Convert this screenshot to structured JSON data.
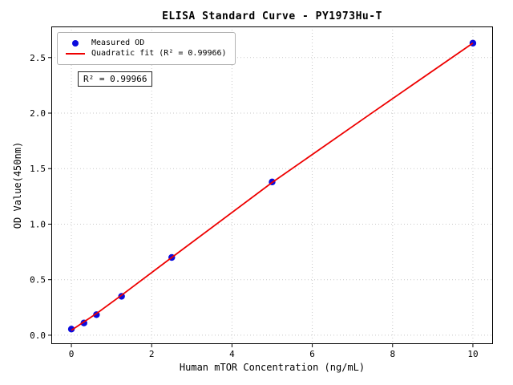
{
  "chart_data": {
    "type": "scatter",
    "title": "ELISA Standard Curve - PY1973Hu-T",
    "xlabel": "Human mTOR Concentration (ng/mL)",
    "ylabel": "OD Value(450nm)",
    "xlim": [
      -0.5,
      10.5
    ],
    "ylim": [
      -0.08,
      2.78
    ],
    "x_ticks": [
      0,
      2,
      4,
      6,
      8,
      10
    ],
    "y_ticks": [
      0.0,
      0.5,
      1.0,
      1.5,
      2.0,
      2.5
    ],
    "grid": true,
    "legend_position": "upper-left",
    "annotation": "R² = 0.99966",
    "colors": {
      "marker": "#0b0bdd",
      "fit_line": "#ee0000",
      "grid": "#c9c9c9",
      "axis": "#000000"
    },
    "series": [
      {
        "name": "Measured OD",
        "kind": "scatter",
        "color": "#0b0bdd",
        "x": [
          0,
          0.313,
          0.625,
          1.25,
          2.5,
          5,
          10
        ],
        "y": [
          0.055,
          0.11,
          0.185,
          0.35,
          0.7,
          1.38,
          2.63
        ]
      },
      {
        "name": "Quadratic fit (R² = 0.99966)",
        "kind": "line",
        "color": "#ee0000",
        "x": [
          0,
          0.625,
          1.25,
          2.5,
          5,
          7.5,
          10
        ],
        "y": [
          0.045,
          0.195,
          0.36,
          0.7,
          1.375,
          2.005,
          2.63
        ]
      }
    ]
  }
}
